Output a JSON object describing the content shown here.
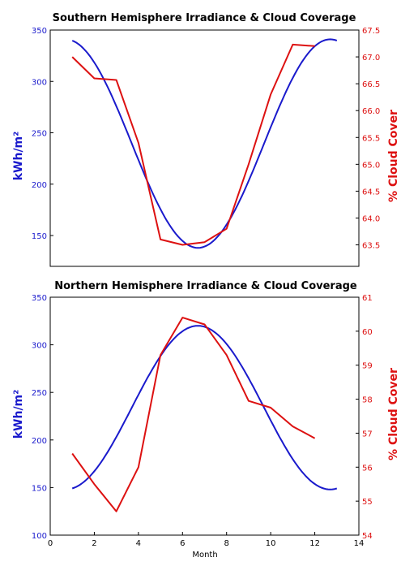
{
  "chart_data": [
    {
      "type": "line",
      "title": "Southern Hemisphere Irradiance & Cloud Coverage",
      "xlabel": "",
      "xlim": [
        0,
        14
      ],
      "show_x_ticks": false,
      "left_axis": {
        "label": "kWh/m²",
        "color": "#1a1acc",
        "ylim": [
          120,
          350
        ],
        "ticks": [
          150,
          200,
          250,
          300,
          350
        ]
      },
      "right_axis": {
        "label": "% Cloud Cover",
        "color": "#dd1111",
        "ylim": [
          63.1,
          67.5
        ],
        "ticks": [
          63.5,
          64.0,
          64.5,
          65.0,
          65.5,
          66.0,
          66.5,
          67.0,
          67.5
        ],
        "tick_labels": [
          "63.5",
          "64.0",
          "64.5",
          "65.0",
          "65.5",
          "66.0",
          "66.5",
          "67.0",
          "67.5"
        ]
      },
      "series": [
        {
          "axis": "left",
          "kind": "irradiance-curve",
          "x_start": 1,
          "x_end": 13,
          "y_max": 341,
          "y_min": 138,
          "x_at_min": 6.7,
          "color": "#1a1acc"
        },
        {
          "axis": "right",
          "color": "#dd1111",
          "x": [
            1,
            2,
            3,
            4,
            5,
            6,
            7,
            8,
            9,
            10,
            11,
            12
          ],
          "values": [
            67.0,
            66.6,
            66.57,
            65.4,
            63.6,
            63.5,
            63.55,
            63.8,
            65.0,
            66.3,
            67.23,
            67.2
          ]
        }
      ]
    },
    {
      "type": "line",
      "title": "Northern Hemisphere Irradiance & Cloud Coverage",
      "xlabel": "Month",
      "xlim": [
        0,
        14
      ],
      "show_x_ticks": true,
      "x_ticks": [
        0,
        2,
        4,
        6,
        8,
        10,
        12,
        14
      ],
      "left_axis": {
        "label": "kWh/m²",
        "color": "#1a1acc",
        "ylim": [
          100,
          350
        ],
        "ticks": [
          100,
          150,
          200,
          250,
          300,
          350
        ]
      },
      "right_axis": {
        "label": "% Cloud Cover",
        "color": "#dd1111",
        "ylim": [
          54,
          61
        ],
        "ticks": [
          54,
          55,
          56,
          57,
          58,
          59,
          60,
          61
        ],
        "tick_labels": [
          "54",
          "55",
          "56",
          "57",
          "58",
          "59",
          "60",
          "61"
        ]
      },
      "series": [
        {
          "axis": "left",
          "kind": "irradiance-curve-inverted",
          "x_start": 1,
          "x_end": 13,
          "y_max": 320,
          "y_min": 148,
          "x_at_max": 6.7,
          "color": "#1a1acc"
        },
        {
          "axis": "right",
          "color": "#dd1111",
          "x": [
            1,
            2,
            3,
            4,
            5,
            6,
            7,
            8,
            9,
            10,
            11,
            12
          ],
          "values": [
            56.4,
            55.5,
            54.7,
            56.0,
            59.3,
            60.4,
            60.2,
            59.3,
            57.95,
            57.75,
            57.2,
            56.85
          ]
        }
      ]
    }
  ]
}
